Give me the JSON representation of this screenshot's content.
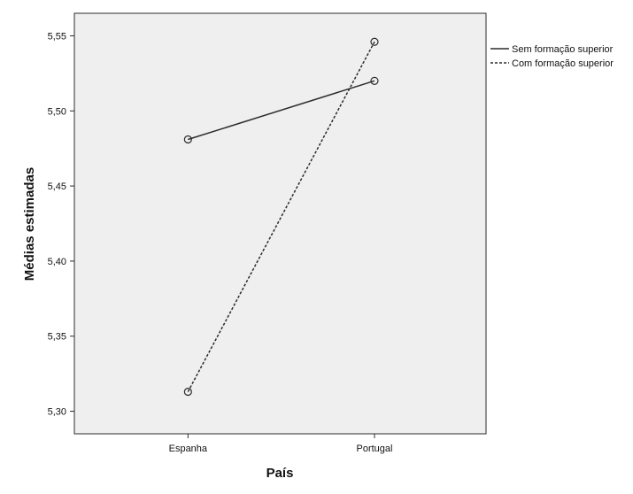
{
  "chart_data": {
    "type": "line",
    "title": "",
    "xlabel": "País",
    "ylabel": "Médias estimadas",
    "categories": [
      "Espanha",
      "Portugal"
    ],
    "ylim": [
      5.285,
      5.565
    ],
    "yticks": [
      5.3,
      5.35,
      5.4,
      5.45,
      5.5,
      5.55
    ],
    "ytick_labels": [
      "5,30",
      "5,35",
      "5,40",
      "5,45",
      "5,50",
      "5,55"
    ],
    "grid": false,
    "legend_position": "right",
    "series": [
      {
        "name": "Sem formação superior",
        "values": [
          5.481,
          5.52
        ],
        "line_style": "solid"
      },
      {
        "name": "Com formação superior",
        "values": [
          5.313,
          5.546
        ],
        "line_style": "dotted"
      }
    ],
    "colors": {
      "plot_background": "#efefef",
      "line": "#2b2b2b",
      "text": "#111111"
    }
  }
}
